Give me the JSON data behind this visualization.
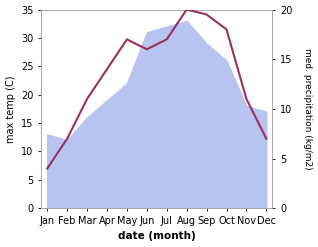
{
  "months": [
    "Jan",
    "Feb",
    "Mar",
    "Apr",
    "May",
    "Jun",
    "Jul",
    "Aug",
    "Sep",
    "Oct",
    "Nov",
    "Dec"
  ],
  "month_indices": [
    0,
    1,
    2,
    3,
    4,
    5,
    6,
    7,
    8,
    9,
    10,
    11
  ],
  "temperature": [
    13.0,
    12.0,
    16.0,
    19.0,
    22.0,
    31.0,
    32.0,
    33.0,
    29.0,
    26.0,
    18.0,
    17.0
  ],
  "precipitation": [
    4.0,
    7.0,
    11.0,
    14.0,
    17.0,
    16.0,
    17.0,
    20.0,
    19.5,
    18.0,
    11.0,
    7.0
  ],
  "fill_color": "#b8c4f0",
  "line_color": "#9b3060",
  "xlabel": "date (month)",
  "ylabel_left": "max temp (C)",
  "ylabel_right": "med. precipitation (kg/m2)",
  "ylim_left": [
    0,
    35
  ],
  "ylim_right": [
    0,
    20
  ],
  "yticks_left": [
    0,
    5,
    10,
    15,
    20,
    25,
    30,
    35
  ],
  "yticks_right": [
    0,
    5,
    10,
    15,
    20
  ],
  "background_color": "#ffffff",
  "spine_color": "#aaaaaa"
}
